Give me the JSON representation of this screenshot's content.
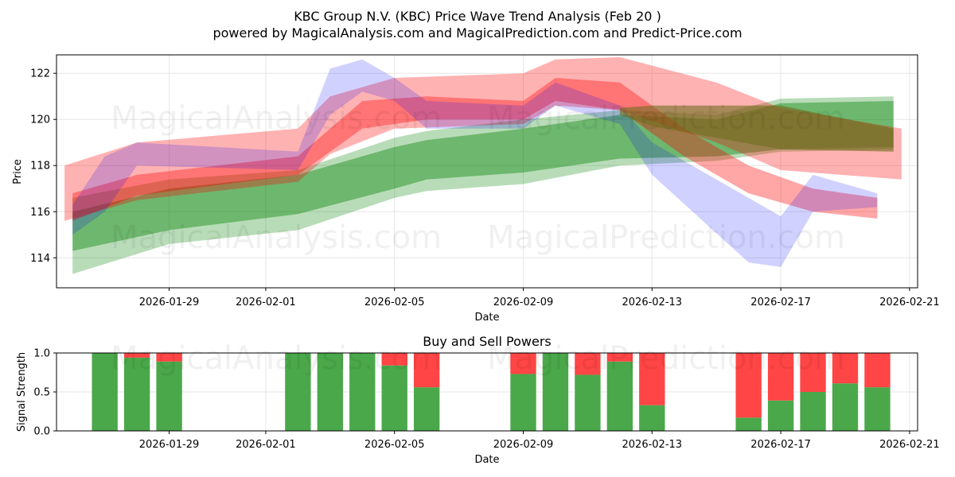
{
  "title": "KBC Group N.V. (KBC) Price Wave Trend Analysis (Feb 20 )",
  "subtitle": "powered by MagicalAnalysis.com and MagicalPrediction.com and Predict-Price.com",
  "watermarks": [
    "MagicalAnalysis.com",
    "MagicalPrediction.com"
  ],
  "colors": {
    "red": "#ff0000",
    "blue": "#0000ff",
    "green": "#008000",
    "bar_green": "#4aa84a",
    "bar_red": "#ff4545",
    "grid": "#e6e6e6"
  },
  "chart_data": [
    {
      "type": "area",
      "title": "",
      "xlabel": "Date",
      "ylabel": "Price",
      "xlim": [
        "2026-01-25T12:00",
        "2026-02-21T06:00"
      ],
      "ylim": [
        112.7,
        122.8
      ],
      "x_ticks": [
        "2026-01-29",
        "2026-02-01",
        "2026-02-05",
        "2026-02-09",
        "2026-02-13",
        "2026-02-17",
        "2026-02-21"
      ],
      "y_ticks": [
        114,
        116,
        118,
        120,
        122
      ],
      "grid": true,
      "series": [
        {
          "name": "green band wide",
          "color": "#008000",
          "opacity": 0.28,
          "x": [
            "2026-01-26",
            "2026-01-29",
            "2026-02-02",
            "2026-02-05",
            "2026-02-06",
            "2026-02-09",
            "2026-02-12",
            "2026-02-15",
            "2026-02-17",
            "2026-02-20T12:00"
          ],
          "upper": [
            116.6,
            117.4,
            117.8,
            119.2,
            119.5,
            120.0,
            120.4,
            120.2,
            120.9,
            121.0
          ],
          "lower": [
            113.3,
            114.6,
            115.2,
            116.6,
            116.9,
            117.2,
            118.0,
            118.2,
            118.6,
            118.7
          ]
        },
        {
          "name": "green band core",
          "color": "#008000",
          "opacity": 0.4,
          "x": [
            "2026-01-26",
            "2026-01-29",
            "2026-02-02",
            "2026-02-05",
            "2026-02-06",
            "2026-02-09",
            "2026-02-12",
            "2026-02-15",
            "2026-02-17",
            "2026-02-20T12:00"
          ],
          "upper": [
            116.0,
            117.0,
            117.6,
            118.8,
            119.1,
            119.6,
            120.2,
            120.0,
            120.7,
            120.8
          ],
          "lower": [
            114.3,
            115.2,
            115.9,
            117.0,
            117.4,
            117.7,
            118.3,
            118.4,
            118.7,
            118.8
          ]
        },
        {
          "name": "red band wide",
          "color": "#ff0000",
          "opacity": 0.3,
          "x": [
            "2026-01-25T18:00",
            "2026-01-28",
            "2026-02-02",
            "2026-02-03",
            "2026-02-05",
            "2026-02-09",
            "2026-02-10",
            "2026-02-12",
            "2026-02-15",
            "2026-02-17",
            "2026-02-20T18:00"
          ],
          "upper": [
            118.0,
            119.0,
            119.6,
            121.0,
            121.8,
            122.0,
            122.6,
            122.7,
            121.6,
            120.5,
            119.6
          ],
          "lower": [
            115.6,
            116.5,
            117.3,
            118.5,
            119.6,
            119.8,
            120.6,
            120.4,
            119.0,
            117.8,
            117.4
          ]
        },
        {
          "name": "red band core",
          "color": "#ff0000",
          "opacity": 0.35,
          "x": [
            "2026-01-26",
            "2026-01-28",
            "2026-02-02",
            "2026-02-04",
            "2026-02-06",
            "2026-02-09",
            "2026-02-10",
            "2026-02-12",
            "2026-02-14",
            "2026-02-16",
            "2026-02-18",
            "2026-02-20"
          ],
          "upper": [
            116.8,
            117.6,
            118.4,
            120.8,
            121.0,
            120.8,
            121.8,
            121.6,
            119.6,
            118.0,
            117.0,
            116.6
          ],
          "lower": [
            115.6,
            116.7,
            117.6,
            119.6,
            120.0,
            120.0,
            120.8,
            120.4,
            118.4,
            116.8,
            116.0,
            115.7
          ]
        },
        {
          "name": "blue band",
          "color": "#0000ff",
          "opacity": 0.18,
          "x": [
            "2026-01-26",
            "2026-01-27",
            "2026-01-28",
            "2026-02-02",
            "2026-02-03",
            "2026-02-04",
            "2026-02-05",
            "2026-02-06",
            "2026-02-09",
            "2026-02-10",
            "2026-02-12",
            "2026-02-13",
            "2026-02-16",
            "2026-02-17",
            "2026-02-18",
            "2026-02-20"
          ],
          "upper": [
            116.3,
            118.4,
            119.0,
            118.6,
            122.2,
            122.6,
            121.8,
            120.8,
            120.6,
            121.6,
            120.6,
            119.0,
            116.6,
            115.8,
            117.6,
            116.8
          ],
          "lower": [
            115.0,
            116.0,
            118.0,
            117.8,
            120.2,
            121.2,
            120.8,
            119.6,
            119.6,
            120.6,
            119.8,
            117.6,
            113.8,
            113.6,
            116.0,
            116.2
          ]
        },
        {
          "name": "olive band",
          "color": "#6e6e1e",
          "opacity": 0.6,
          "x": [
            "2026-02-12",
            "2026-02-13",
            "2026-02-15",
            "2026-02-17",
            "2026-02-20T12:00"
          ],
          "upper": [
            120.5,
            120.6,
            120.6,
            120.6,
            119.6
          ],
          "lower": [
            120.2,
            119.7,
            119.2,
            118.7,
            118.6
          ]
        }
      ]
    },
    {
      "type": "bar",
      "title": "Buy and Sell Powers",
      "xlabel": "Date",
      "ylabel": "Signal Strength",
      "ylim": [
        0,
        1
      ],
      "y_ticks": [
        "0.0",
        "0.5",
        "1.0"
      ],
      "x_ticks": [
        "2026-01-29",
        "2026-02-01",
        "2026-02-05",
        "2026-02-09",
        "2026-02-13",
        "2026-02-17",
        "2026-02-21"
      ],
      "categories": [
        "2026-01-27",
        "2026-01-28",
        "2026-01-29",
        "2026-02-02",
        "2026-02-03",
        "2026-02-04",
        "2026-02-05",
        "2026-02-06",
        "2026-02-09",
        "2026-02-10",
        "2026-02-11",
        "2026-02-12",
        "2026-02-13",
        "2026-02-16",
        "2026-02-17",
        "2026-02-18",
        "2026-02-19",
        "2026-02-20"
      ],
      "series": [
        {
          "name": "Buy",
          "color": "#4aa84a",
          "values": [
            1.0,
            0.94,
            0.89,
            1.0,
            1.0,
            1.0,
            0.84,
            0.56,
            0.73,
            1.0,
            0.72,
            0.89,
            0.33,
            0.17,
            0.39,
            0.5,
            0.61,
            0.56
          ]
        },
        {
          "name": "Sell",
          "color": "#ff4545",
          "values": [
            0.0,
            0.06,
            0.11,
            0.0,
            0.0,
            0.0,
            0.16,
            0.44,
            0.27,
            0.0,
            0.28,
            0.11,
            0.67,
            0.83,
            0.61,
            0.5,
            0.39,
            0.44
          ]
        }
      ]
    }
  ]
}
